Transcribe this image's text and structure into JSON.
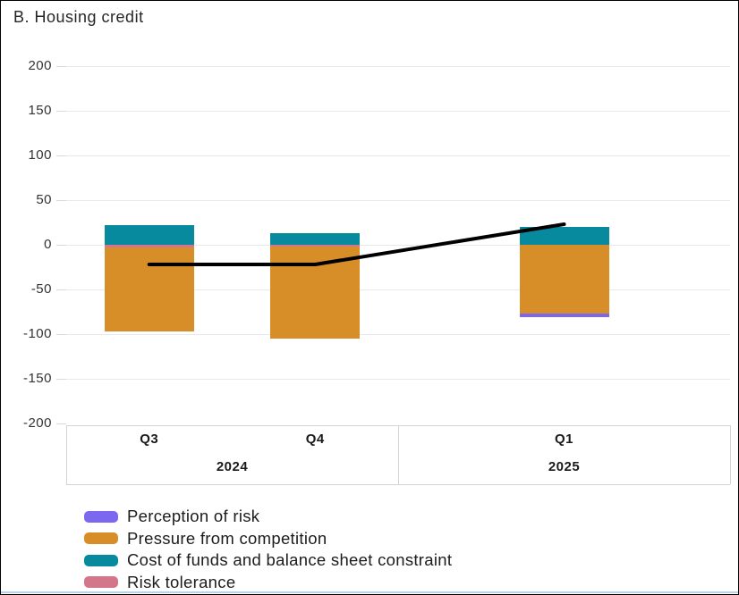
{
  "title": "B. Housing credit",
  "chart_data": {
    "type": "bar",
    "stacked": true,
    "title": "B. Housing credit",
    "categories": [
      "Q3",
      "Q4",
      "Q1"
    ],
    "category_groups": [
      {
        "label": "2024",
        "span": 2
      },
      {
        "label": "2025",
        "span": 1
      }
    ],
    "series": [
      {
        "name": "Perception of risk",
        "color": "#7c68f0",
        "values": [
          0,
          0,
          -4
        ]
      },
      {
        "name": "Pressure from competition",
        "color": "#d88e28",
        "values": [
          -94,
          -103,
          -77
        ]
      },
      {
        "name": "Cost of funds and balance sheet constraint",
        "color": "#078a9e",
        "values": [
          22,
          13,
          20
        ]
      },
      {
        "name": "Risk tolerance",
        "color": "#d3758b",
        "values": [
          -3,
          -2,
          0
        ]
      }
    ],
    "stack_order": [
      "Risk tolerance",
      "Pressure from competition",
      "Perception of risk",
      "Cost of funds and balance sheet constraint"
    ],
    "line": {
      "color": "#000000",
      "values": [
        -22,
        -22,
        23
      ]
    },
    "ylim": [
      -200,
      200
    ],
    "ytick_step": 50,
    "yticks": [
      200,
      150,
      100,
      50,
      0,
      -50,
      -100,
      -150,
      -200
    ],
    "grid": true,
    "legend_position": "bottom-left"
  },
  "colors": {
    "gridline": "#e8e8e8",
    "axis_table_line": "#d4d4d4",
    "text": "#262626"
  }
}
